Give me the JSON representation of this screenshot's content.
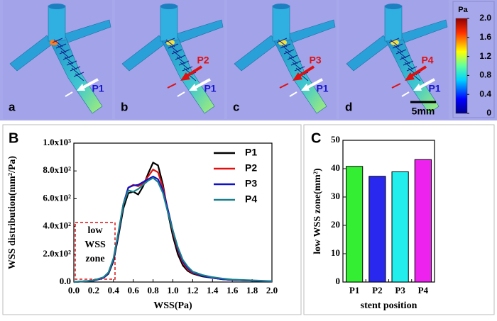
{
  "panel_labels": [
    "A",
    "B",
    "C"
  ],
  "simulation": {
    "panels": [
      {
        "label": "a",
        "markers": [
          "P1"
        ]
      },
      {
        "label": "b",
        "markers": [
          "P2",
          "P1"
        ]
      },
      {
        "label": "c",
        "markers": [
          "P3",
          "P1"
        ]
      },
      {
        "label": "d",
        "markers": [
          "P4",
          "P1"
        ]
      }
    ],
    "scale_bar": "5mm",
    "colorbar": {
      "title": "Pa",
      "lim": [
        0,
        2
      ],
      "ticks": [
        {
          "value": 2,
          "label": "2.0"
        },
        1.6,
        1.2,
        0.8,
        0.4,
        0
      ]
    }
  },
  "chart_data": [
    {
      "type": "line",
      "xlabel": "WSS(Pa)",
      "ylabel": "WSS distribution(mm²/Pa)",
      "x": [
        0,
        0.1,
        0.2,
        0.3,
        0.35,
        0.4,
        0.45,
        0.5,
        0.55,
        0.6,
        0.65,
        0.7,
        0.75,
        0.8,
        0.85,
        0.9,
        0.95,
        1.0,
        1.05,
        1.1,
        1.15,
        1.2,
        1.3,
        1.4,
        1.5,
        1.6,
        1.8,
        2.0
      ],
      "series": [
        {
          "name": "P1",
          "color": "#000000",
          "values": [
            0,
            5,
            10,
            30,
            60,
            150,
            330,
            530,
            640,
            650,
            630,
            690,
            780,
            860,
            840,
            700,
            500,
            330,
            200,
            120,
            80,
            60,
            40,
            30,
            20,
            15,
            10,
            5
          ]
        },
        {
          "name": "P2",
          "color": "#e01010",
          "values": [
            0,
            5,
            10,
            30,
            65,
            160,
            350,
            560,
            680,
            700,
            690,
            710,
            760,
            810,
            790,
            680,
            520,
            360,
            230,
            140,
            90,
            65,
            45,
            30,
            20,
            15,
            10,
            5
          ]
        },
        {
          "name": "P3",
          "color": "#1010c8",
          "values": [
            0,
            5,
            10,
            30,
            65,
            160,
            350,
            560,
            680,
            695,
            700,
            720,
            740,
            760,
            740,
            660,
            520,
            370,
            240,
            150,
            100,
            70,
            45,
            30,
            20,
            15,
            10,
            5
          ]
        },
        {
          "name": "P4",
          "color": "#1a7f8a",
          "values": [
            0,
            5,
            12,
            35,
            70,
            170,
            360,
            560,
            660,
            650,
            670,
            700,
            730,
            750,
            720,
            640,
            500,
            370,
            250,
            160,
            110,
            75,
            50,
            35,
            25,
            18,
            12,
            6
          ]
        }
      ],
      "xlim": [
        0,
        2
      ],
      "ylim": [
        0,
        1000
      ],
      "xticks": [
        {
          "value": 0,
          "label": "0.0"
        },
        0.2,
        0.4,
        0.6,
        0.8,
        {
          "value": 1,
          "label": "1.0"
        },
        1.2,
        1.4,
        1.6,
        1.8,
        {
          "value": 2,
          "label": "2.0"
        }
      ],
      "yticks": [
        {
          "value": 0,
          "label": "0.0"
        },
        {
          "value": 200,
          "label": "2.0x10²"
        },
        {
          "value": 400,
          "label": "4.0x10²"
        },
        {
          "value": 600,
          "label": "6.0x10²"
        },
        {
          "value": 800,
          "label": "8.0x10²"
        },
        {
          "value": 1000,
          "label": "1.0x10³"
        }
      ],
      "legend": "upper right",
      "annotation": [
        "low",
        "WSS",
        "zone"
      ]
    },
    {
      "type": "bar",
      "xlabel": "stent position",
      "ylabel": "low WSS zone(mm²)",
      "categories": [
        "P1",
        "P2",
        "P3",
        "P4"
      ],
      "values": [
        40.8,
        37.3,
        38.9,
        43.2
      ],
      "colors": [
        "#33ee33",
        "#2828ee",
        "#22eeee",
        "#ee22ee"
      ],
      "ylim": [
        0,
        50
      ],
      "yticks": [
        0,
        10,
        20,
        30,
        40,
        50
      ]
    }
  ]
}
